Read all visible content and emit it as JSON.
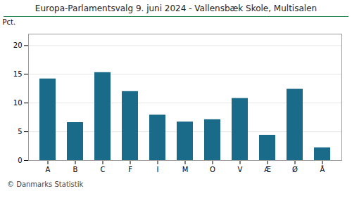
{
  "chart_data": {
    "type": "bar",
    "title": "Europa-Parlamentsvalg 9. juni 2024 - Vallensbæk Skole, Multisalen",
    "ylabel": "Pct.",
    "categories": [
      "A",
      "B",
      "C",
      "F",
      "I",
      "M",
      "O",
      "V",
      "Æ",
      "Ø",
      "Å"
    ],
    "values": [
      14.2,
      6.6,
      15.3,
      12.0,
      7.9,
      6.7,
      7.1,
      10.8,
      4.4,
      12.4,
      2.2
    ],
    "color": "#1a6b8a",
    "ylim": [
      0,
      22
    ],
    "yticks": [
      0,
      5,
      10,
      15,
      20
    ],
    "grid": true,
    "caption": "© Danmarks Statistik"
  }
}
